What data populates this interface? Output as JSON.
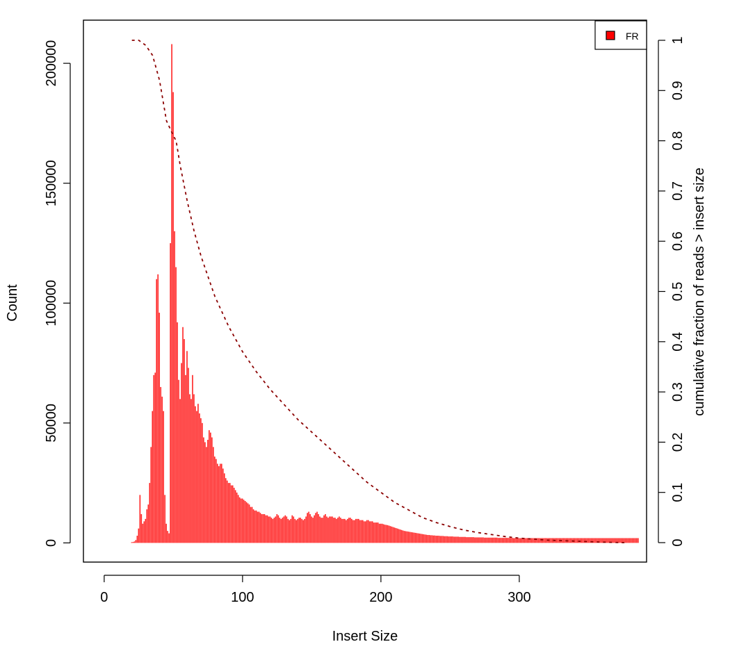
{
  "chart_data": {
    "type": "bar",
    "xlabel": "Insert Size",
    "ylabel": "Count",
    "y2label": "cumulative fraction of reads > insert size",
    "xlim": [
      -15,
      392
    ],
    "ylim": [
      -8000,
      218000
    ],
    "y2lim": [
      0,
      1
    ],
    "x_ticks": [
      0,
      100,
      200,
      300
    ],
    "y_ticks": [
      0,
      50000,
      100000,
      150000,
      200000
    ],
    "y2_ticks": [
      0,
      0.1,
      0.2,
      0.3,
      0.4,
      0.5,
      0.6,
      0.7,
      0.8,
      0.9,
      1
    ],
    "legend": {
      "position": "top-right",
      "entries": [
        {
          "label": "FR",
          "color": "#ff0000"
        }
      ]
    },
    "colors": {
      "bars": "#ff2222",
      "cumulative_line": "#8b0000",
      "frame": "#000000"
    },
    "histogram": {
      "x_start": 20,
      "x_end": 376,
      "counts": [
        300,
        400,
        600,
        1200,
        3000,
        6000,
        20000,
        12000,
        8000,
        9000,
        10000,
        14000,
        16000,
        25000,
        40000,
        55000,
        70000,
        71000,
        110000,
        112000,
        96000,
        65000,
        61000,
        55000,
        20000,
        8000,
        5000,
        4000,
        125000,
        208000,
        188000,
        130000,
        115000,
        92000,
        68000,
        60000,
        75000,
        90000,
        85000,
        70000,
        80000,
        73000,
        62000,
        60000,
        70000,
        62000,
        57000,
        55000,
        58000,
        54000,
        52000,
        50000,
        44000,
        42000,
        40000,
        43000,
        47000,
        46000,
        44000,
        40000,
        36000,
        35000,
        33000,
        32000,
        33000,
        33000,
        31000,
        29000,
        27000,
        26000,
        25000,
        25000,
        24000,
        24000,
        23000,
        22000,
        21000,
        20000,
        19000,
        18500,
        18500,
        18000,
        17500,
        17000,
        16500,
        16000,
        15000,
        15000,
        14000,
        13500,
        13500,
        13000,
        13000,
        12500,
        12000,
        12000,
        12000,
        11500,
        11500,
        11000,
        11000,
        10500,
        10000,
        10500,
        11000,
        12000,
        11500,
        10500,
        10000,
        10500,
        11000,
        11500,
        11000,
        10000,
        9500,
        10000,
        11500,
        11000,
        10000,
        9500,
        10000,
        10500,
        10500,
        10000,
        9500,
        10000,
        11000,
        12500,
        13000,
        12000,
        11000,
        10500,
        11500,
        12500,
        13000,
        12000,
        11000,
        10500,
        10500,
        11500,
        12000,
        11000,
        10500,
        11000,
        11000,
        11000,
        10500,
        10500,
        10000,
        10500,
        11000,
        10500,
        10000,
        10000,
        10000,
        9500,
        10000,
        10500,
        10500,
        10000,
        9500,
        9500,
        10000,
        10000,
        10000,
        9500,
        9500,
        9500,
        9000,
        9000,
        9500,
        9500,
        9000,
        9000,
        9000,
        8500,
        8500,
        8500,
        8500,
        8000,
        8000,
        8000,
        7800,
        7600,
        7500,
        7400,
        7200,
        7000,
        6800,
        6600,
        6400,
        6200,
        6000,
        5800,
        5600,
        5400,
        5200,
        5000,
        4900,
        4800,
        4700,
        4600,
        4500,
        4400,
        4300,
        4200,
        4100,
        4000,
        3900,
        3800,
        3700,
        3600,
        3500,
        3400,
        3300,
        3300,
        3200,
        3200,
        3100,
        3100,
        3000,
        3000,
        3000,
        2900,
        2900,
        2900,
        2800,
        2800,
        2800,
        2700,
        2700,
        2700,
        2700,
        2600,
        2600,
        2600,
        2600,
        2500,
        2500,
        2500,
        2500,
        2500,
        2400,
        2400,
        2400,
        2400,
        2400,
        2400,
        2300,
        2300,
        2300,
        2300,
        2300,
        2300,
        2300,
        2200,
        2200,
        2200,
        2200,
        2200,
        2200,
        2200,
        2200,
        2200,
        2200,
        2100,
        2100,
        2100,
        2100,
        2100,
        2100,
        2100,
        2100,
        2100,
        2100,
        2100,
        2000,
        2000,
        2000,
        2000,
        2000,
        2000,
        2000,
        2000,
        2000,
        2000,
        2000,
        2000,
        2000,
        2000,
        2000,
        2000,
        2000,
        2000,
        2000,
        2000,
        2000,
        2000,
        2000,
        2000,
        2000,
        2000,
        2000,
        2000,
        2000,
        2000,
        2000,
        2000,
        2000,
        2000,
        2000,
        2000,
        2000,
        2000,
        2000,
        2000,
        2000,
        2000,
        2000,
        2000,
        2000,
        2000,
        2000,
        2000,
        2000,
        2000,
        2000,
        2000,
        2000,
        2000,
        2000,
        2000,
        2000,
        2000,
        2000,
        2000,
        2000,
        2000,
        2000,
        2000,
        2000,
        2000,
        2000,
        2000,
        2000,
        2000,
        2000,
        2000,
        2000,
        2000,
        2000,
        2000,
        2000,
        2000,
        2000,
        2000,
        2000,
        2000,
        2000,
        2000,
        2000,
        2000,
        2000,
        2000,
        2000,
        2000,
        2000
      ]
    },
    "cumulative": {
      "x": [
        20,
        25,
        30,
        35,
        40,
        45,
        50,
        52,
        55,
        60,
        65,
        70,
        75,
        80,
        85,
        90,
        95,
        100,
        110,
        120,
        130,
        140,
        150,
        160,
        170,
        180,
        190,
        200,
        210,
        220,
        230,
        240,
        250,
        260,
        270,
        280,
        290,
        300,
        310,
        320,
        330,
        340,
        350,
        360,
        376
      ],
      "y": [
        1.0,
        1.0,
        0.99,
        0.97,
        0.92,
        0.84,
        0.81,
        0.8,
        0.75,
        0.68,
        0.62,
        0.57,
        0.53,
        0.49,
        0.46,
        0.43,
        0.405,
        0.38,
        0.34,
        0.305,
        0.275,
        0.245,
        0.22,
        0.195,
        0.17,
        0.145,
        0.12,
        0.1,
        0.08,
        0.065,
        0.05,
        0.04,
        0.032,
        0.025,
        0.02,
        0.016,
        0.012,
        0.009,
        0.007,
        0.005,
        0.004,
        0.003,
        0.002,
        0.001,
        0.0
      ]
    }
  }
}
